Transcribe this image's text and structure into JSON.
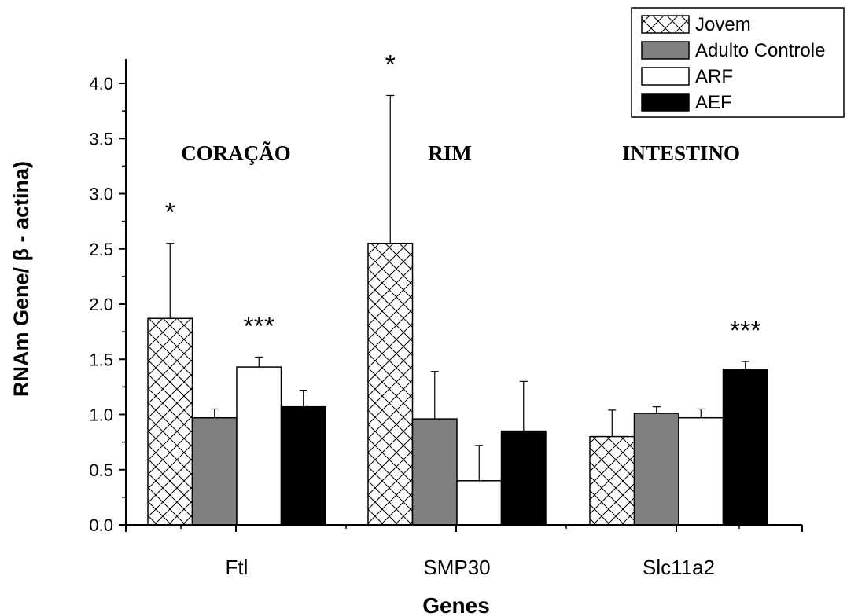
{
  "chart_data": {
    "type": "bar",
    "categories": [
      "Ftl",
      "SMP30",
      "Slc11a2"
    ],
    "xlabel": "Genes",
    "ylabel": "RNAm Gene/ β - actina)",
    "ylim": [
      0,
      4.2
    ],
    "yticks": [
      "0.0",
      "0.5",
      "1.0",
      "1.5",
      "2.0",
      "2.5",
      "3.0",
      "3.5",
      "4.0"
    ],
    "grid": false,
    "legend_position": "top-right",
    "series": [
      {
        "name": "Jovem",
        "values": [
          1.87,
          2.55,
          0.8
        ],
        "errors": [
          0.68,
          1.34,
          0.24
        ],
        "fill": "crosshatch",
        "color": "#ffffff"
      },
      {
        "name": "Adulto Controle",
        "values": [
          0.97,
          0.96,
          1.01
        ],
        "errors": [
          0.08,
          0.43,
          0.06
        ],
        "fill": "solid",
        "color": "#808080"
      },
      {
        "name": "ARF",
        "values": [
          1.43,
          0.4,
          0.97
        ],
        "errors": [
          0.09,
          0.32,
          0.08
        ],
        "fill": "solid",
        "color": "#ffffff"
      },
      {
        "name": "AEF",
        "values": [
          1.07,
          0.85,
          1.41
        ],
        "errors": [
          0.15,
          0.45,
          0.07
        ],
        "fill": "solid",
        "color": "#000000"
      }
    ],
    "group_labels": [
      "CORAÇÃO",
      "RIM",
      "INTESTINO"
    ],
    "annotations": [
      {
        "text": "*",
        "category": 0,
        "series": 0
      },
      {
        "text": "***",
        "category": 0,
        "series": 2
      },
      {
        "text": "*",
        "category": 1,
        "series": 0
      },
      {
        "text": "***",
        "category": 2,
        "series": 3
      }
    ]
  }
}
